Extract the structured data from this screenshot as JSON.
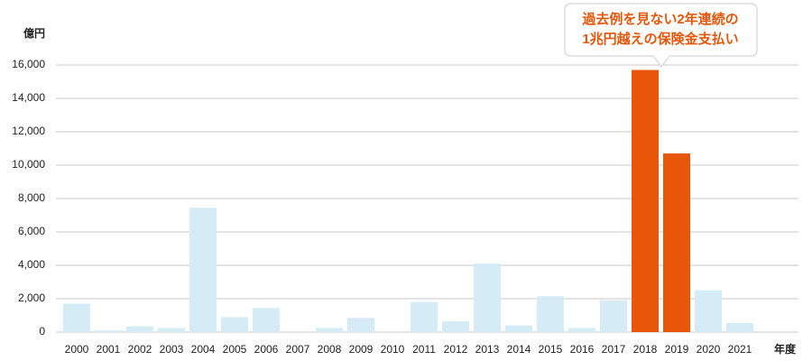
{
  "chart_data": {
    "type": "bar",
    "y_label": "億円",
    "x_label": "年度",
    "annotation": [
      "過去例を見ない2年連続の",
      "1兆円越えの保険金支払い"
    ],
    "categories": [
      "2000",
      "2001",
      "2002",
      "2003",
      "2004",
      "2005",
      "2006",
      "2007",
      "2008",
      "2009",
      "2010",
      "2011",
      "2012",
      "2013",
      "2014",
      "2015",
      "2016",
      "2017",
      "2018",
      "2019",
      "2020",
      "2021"
    ],
    "values": [
      1700,
      100,
      350,
      250,
      7450,
      900,
      1450,
      0,
      250,
      850,
      0,
      1800,
      650,
      4100,
      400,
      2150,
      250,
      1900,
      15700,
      10700,
      2500,
      550
    ],
    "colors": [
      "#d5ebf6",
      "#d5ebf6",
      "#d5ebf6",
      "#d5ebf6",
      "#d5ebf6",
      "#d5ebf6",
      "#d5ebf6",
      "#d5ebf6",
      "#d5ebf6",
      "#d5ebf6",
      "#d5ebf6",
      "#d5ebf6",
      "#d5ebf6",
      "#d5ebf6",
      "#d5ebf6",
      "#d5ebf6",
      "#d5ebf6",
      "#d5ebf6",
      "#e8560a",
      "#e8560a",
      "#d5ebf6",
      "#d5ebf6"
    ],
    "ylim": [
      0,
      16000
    ],
    "yticks": [
      0,
      {
        "value": 2000,
        "label": "2,000"
      },
      {
        "value": 4000,
        "label": "4,000"
      },
      {
        "value": 6000,
        "label": "6,000"
      },
      {
        "value": 8000,
        "label": "8,000"
      },
      {
        "value": 10000,
        "label": "10,000"
      },
      {
        "value": 12000,
        "label": "12,000"
      },
      {
        "value": 14000,
        "label": "14,000"
      },
      {
        "value": 16000,
        "label": "16,000"
      }
    ],
    "grid": true
  }
}
